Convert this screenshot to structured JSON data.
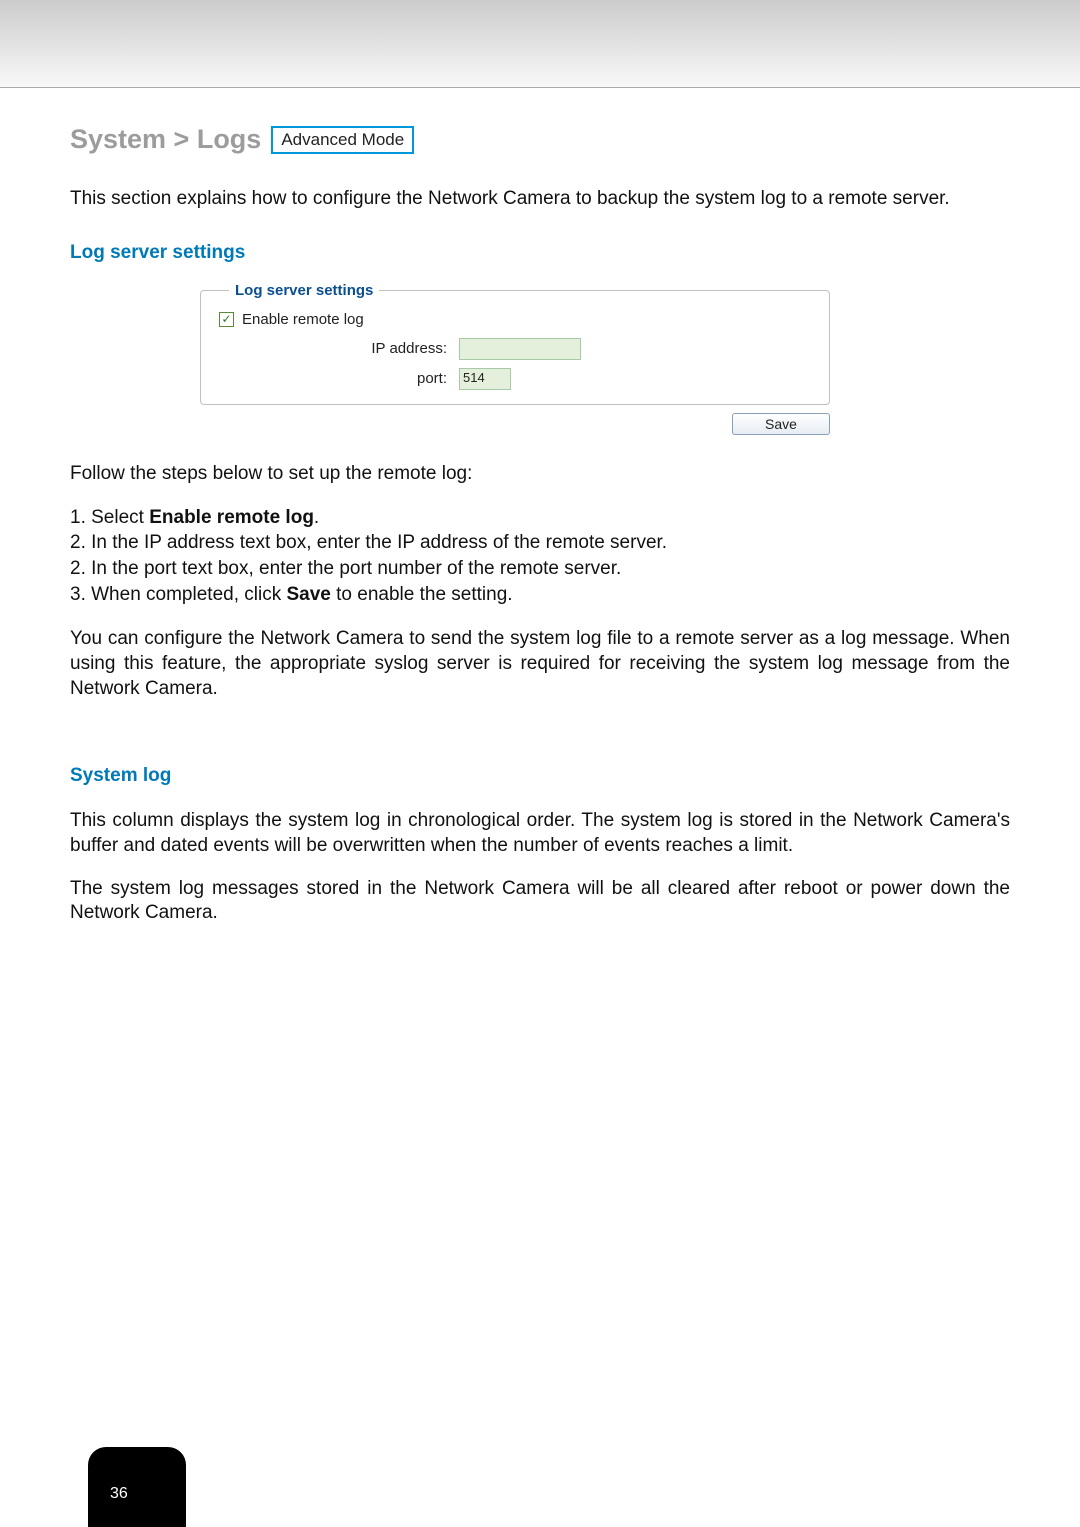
{
  "header": {
    "breadcrumb": "System > Logs",
    "mode_badge": "Advanced Mode"
  },
  "intro_text": "This section explains how to configure the Network Camera to backup the system log to a remote server.",
  "log_server": {
    "section_title": "Log server settings",
    "legend": "Log server settings",
    "enable_checkbox": {
      "checked": true,
      "label": "Enable remote log"
    },
    "ip_label": "IP address:",
    "ip_value": "",
    "port_label": "port:",
    "port_value": "514",
    "save_button": "Save",
    "colors": {
      "legend_color": "#0a4f8f",
      "input_bg": "#e4f0db",
      "input_border": "#a8caa8",
      "button_border": "#8a9fb8"
    }
  },
  "follow_text": "Follow the steps below to set up the remote log:",
  "steps": {
    "s1a": "1. Select ",
    "s1b": "Enable remote log",
    "s1c": ".",
    "s2": "2. In the IP address text box, enter the IP address of the remote server.",
    "s2b": "2. In the port text box, enter the port number of the remote server.",
    "s3a": "3. When completed, click ",
    "s3b": "Save",
    "s3c": " to enable the setting."
  },
  "para_remote": "You can configure the Network Camera to send the system log file to a remote server as a log message. When using this feature, the appropriate syslog server is required for receiving the system log message from the Network Camera.",
  "system_log": {
    "title": "System log",
    "p1": "This column displays the system log in chronological order. The system log is stored in the Network Camera's buffer and dated events will be overwritten when the number of events reaches a limit.",
    "p2": "The system log messages stored in the Network Camera will be all cleared after reboot or power down the Network Camera."
  },
  "page_number": "36",
  "colors": {
    "heading_gray": "#9c9c9c",
    "badge_border": "#0098d8",
    "section_blue": "#0079b8",
    "top_gradient_from": "#cccccc",
    "top_gradient_to": "#f8f8f8"
  }
}
